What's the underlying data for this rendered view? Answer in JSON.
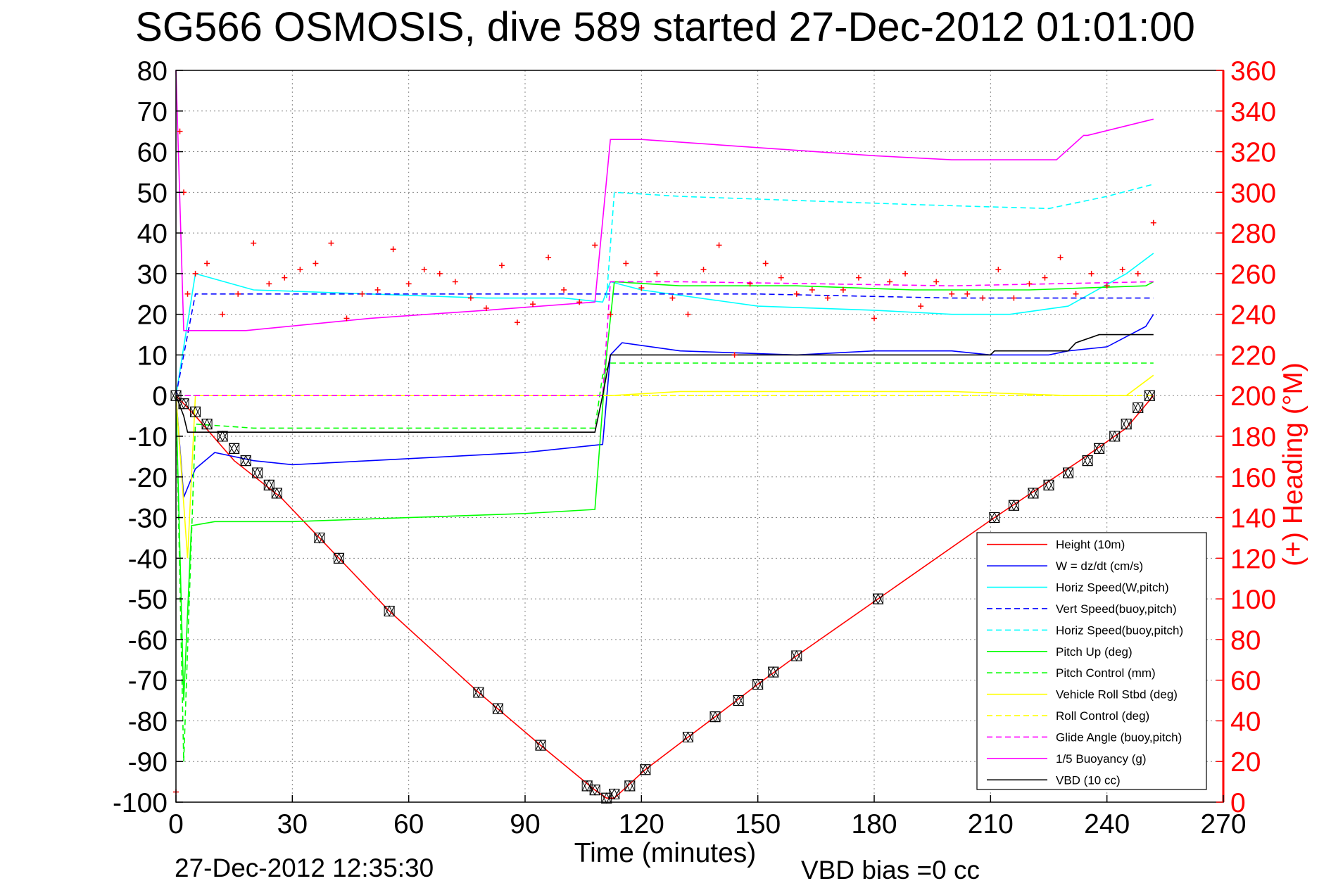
{
  "chart_data": {
    "type": "line",
    "title": "SG566 OSMOSIS, dive 589 started 27-Dec-2012 01:01:00",
    "xlabel": "Time (minutes)",
    "ylabel_right": "(+) Heading (°M)",
    "xlim": [
      0,
      270
    ],
    "ylim": [
      -100,
      80
    ],
    "ylim_right": [
      0,
      360
    ],
    "x_ticks": [
      "0",
      "30",
      "60",
      "90",
      "120",
      "150",
      "180",
      "210",
      "240",
      "270"
    ],
    "y_ticks": [
      "80",
      "70",
      "60",
      "50",
      "40",
      "30",
      "20",
      "10",
      "0",
      "-10",
      "-20",
      "-30",
      "-40",
      "-50",
      "-60",
      "-70",
      "-80",
      "-90",
      "-100"
    ],
    "y_ticks_right": [
      "360",
      "340",
      "320",
      "300",
      "280",
      "260",
      "240",
      "220",
      "200",
      "180",
      "160",
      "140",
      "120",
      "100",
      "80",
      "60",
      "40",
      "20",
      "0"
    ],
    "grid": true,
    "legend_position": "bottom-right",
    "footer_timestamp": "27-Dec-2012 12:35:30",
    "footer_vbd": "VBD bias =0 cc",
    "colors": {
      "height": "#ff0000",
      "w": "#0000ff",
      "horiz_w": "#00ffff",
      "vert_buoy": "#0000ff",
      "horiz_buoy": "#00ffff",
      "pitch_up": "#00ff00",
      "pitch_control": "#00ff00",
      "roll": "#ffff00",
      "roll_control": "#ffff00",
      "glide": "#ff00ff",
      "buoyancy": "#ff00ff",
      "vbd": "#000000",
      "heading": "#ff0000"
    },
    "series": [
      {
        "name": "Height (10m)",
        "style": "solid",
        "color": "#ff0000",
        "x": [
          0,
          5,
          15,
          27,
          42,
          55,
          78,
          94,
          108,
          111,
          113,
          121,
          132,
          139,
          150,
          160,
          181,
          211,
          222,
          233,
          245,
          252
        ],
        "y": [
          0,
          -5,
          -16,
          -25,
          -40,
          -53,
          -73,
          -86,
          -97,
          -99,
          -99,
          -92,
          -84,
          -79,
          -71,
          -64,
          -50,
          -30,
          -23,
          -16,
          -8,
          0
        ]
      },
      {
        "name": "W = dz/dt (cm/s)",
        "style": "solid",
        "color": "#0000ff",
        "x": [
          0,
          2,
          5,
          10,
          20,
          30,
          50,
          70,
          90,
          110,
          112,
          115,
          130,
          160,
          180,
          200,
          210,
          225,
          230,
          240,
          250,
          252
        ],
        "y": [
          0,
          -25,
          -18,
          -14,
          -16,
          -17,
          -16,
          -15,
          -14,
          -12,
          10,
          13,
          11,
          10,
          11,
          11,
          10,
          10,
          11,
          12,
          17,
          20
        ]
      },
      {
        "name": "Horiz Speed(W,pitch)",
        "style": "solid",
        "color": "#00ffff",
        "x": [
          0,
          5,
          20,
          50,
          80,
          100,
          110,
          112,
          120,
          150,
          180,
          200,
          215,
          230,
          245,
          252
        ],
        "y": [
          0,
          30,
          26,
          25,
          24,
          24,
          23,
          28,
          26,
          22,
          21,
          20,
          20,
          22,
          30,
          35
        ]
      },
      {
        "name": "Vert Speed(buoy,pitch)",
        "style": "dashed",
        "color": "#0000ff",
        "x": [
          0,
          5,
          30,
          110,
          112,
          150,
          200,
          252
        ],
        "y": [
          0,
          25,
          25,
          25,
          25,
          25,
          24,
          24
        ]
      },
      {
        "name": "Horiz Speed(buoy,pitch)",
        "style": "dashed",
        "color": "#00ffff",
        "x": [
          111,
          113,
          130,
          160,
          190,
          225,
          240,
          252
        ],
        "y": [
          24,
          50,
          49,
          48,
          47,
          46,
          49,
          52
        ]
      },
      {
        "name": "Pitch Up (deg)",
        "style": "solid",
        "color": "#00ff00",
        "x": [
          0,
          2,
          4,
          10,
          30,
          60,
          90,
          108,
          111,
          113,
          130,
          160,
          190,
          220,
          250,
          252
        ],
        "y": [
          0,
          -75,
          -32,
          -31,
          -31,
          -30,
          -29,
          -28,
          10,
          28,
          27,
          27,
          26,
          26,
          27,
          28
        ]
      },
      {
        "name": "Pitch Control (mm)",
        "style": "dashed",
        "color": "#00ff00",
        "x": [
          0,
          2,
          5,
          20,
          108,
          110,
          112,
          130,
          200,
          252
        ],
        "y": [
          0,
          -90,
          -7,
          -8,
          -8,
          5,
          8,
          8,
          8,
          8
        ]
      },
      {
        "name": "Vehicle Roll Stbd (deg)",
        "style": "solid",
        "color": "#ffff00",
        "x": [
          0,
          3,
          5,
          20,
          40,
          60,
          80,
          100,
          110,
          112,
          130,
          160,
          200,
          230,
          245,
          252
        ],
        "y": [
          0,
          -40,
          0,
          0,
          0,
          0,
          0,
          0,
          0,
          0,
          1,
          1,
          1,
          0,
          0,
          5
        ]
      },
      {
        "name": "Roll Control (deg)",
        "style": "dashed",
        "color": "#ffff00",
        "x": [
          0,
          252
        ],
        "y": [
          0,
          0
        ]
      },
      {
        "name": "Glide Angle (buoy,pitch)",
        "style": "dashed",
        "color": "#ff00ff",
        "x": [
          0,
          3,
          110,
          112,
          130,
          200,
          252
        ],
        "y": [
          0,
          0,
          0,
          28,
          28,
          27,
          28
        ]
      },
      {
        "name": "1/5 Buoyancy (g)",
        "style": "solid",
        "color": "#ff00ff",
        "x": [
          0,
          2,
          4,
          18,
          50,
          80,
          108,
          112,
          120,
          150,
          180,
          200,
          226,
          227,
          234,
          235,
          252
        ],
        "y": [
          80,
          16,
          16,
          16,
          19,
          21,
          23,
          63,
          63,
          61,
          59,
          58,
          58,
          58,
          64,
          64,
          68
        ]
      },
      {
        "name": "VBD (10 cc)",
        "style": "solid",
        "color": "#000000",
        "x": [
          0,
          2,
          3,
          108,
          110,
          112,
          120,
          210,
          211,
          230,
          232,
          238,
          252
        ],
        "y": [
          0,
          -5,
          -9,
          -9,
          0,
          10,
          10,
          10,
          11,
          11,
          13,
          15,
          15
        ]
      }
    ],
    "heading": {
      "name": "(+) Heading",
      "marker": "+",
      "color": "#ff0000",
      "x": [
        0,
        1,
        2,
        3,
        5,
        8,
        12,
        16,
        20,
        24,
        28,
        32,
        36,
        40,
        44,
        48,
        52,
        56,
        60,
        64,
        68,
        72,
        76,
        80,
        84,
        88,
        92,
        96,
        100,
        104,
        108,
        112,
        116,
        120,
        124,
        128,
        132,
        136,
        140,
        144,
        148,
        152,
        156,
        160,
        164,
        168,
        172,
        176,
        180,
        184,
        188,
        192,
        196,
        200,
        204,
        208,
        212,
        216,
        220,
        224,
        228,
        232,
        236,
        240,
        244,
        248,
        252
      ],
      "y": [
        5,
        330,
        300,
        250,
        260,
        265,
        240,
        250,
        275,
        255,
        258,
        262,
        265,
        275,
        238,
        250,
        252,
        272,
        255,
        262,
        260,
        256,
        248,
        243,
        264,
        236,
        245,
        268,
        252,
        246,
        274,
        240,
        265,
        253,
        260,
        248,
        240,
        262,
        274,
        220,
        255,
        265,
        258,
        250,
        252,
        248,
        252,
        258,
        238,
        256,
        260,
        244,
        256,
        250,
        250,
        248,
        262,
        248,
        255,
        258,
        268,
        250,
        260,
        254,
        262,
        260,
        285
      ]
    },
    "depth_markers": {
      "marker": "triangle-box",
      "color": "#000000",
      "x": [
        0,
        2,
        5,
        8,
        12,
        15,
        18,
        21,
        24,
        26,
        37,
        42,
        55,
        78,
        83,
        94,
        106,
        108,
        111,
        113,
        117,
        121,
        132,
        139,
        145,
        150,
        154,
        160,
        181,
        211,
        216,
        221,
        225,
        230,
        235,
        238,
        242,
        245,
        248,
        251
      ],
      "y": [
        0,
        -2,
        -4,
        -7,
        -10,
        -13,
        -16,
        -19,
        -22,
        -24,
        -35,
        -40,
        -53,
        -73,
        -77,
        -86,
        -96,
        -97,
        -99,
        -98,
        -96,
        -92,
        -84,
        -79,
        -75,
        -71,
        -68,
        -64,
        -50,
        -30,
        -27,
        -24,
        -22,
        -19,
        -16,
        -13,
        -10,
        -7,
        -3,
        0
      ]
    }
  }
}
